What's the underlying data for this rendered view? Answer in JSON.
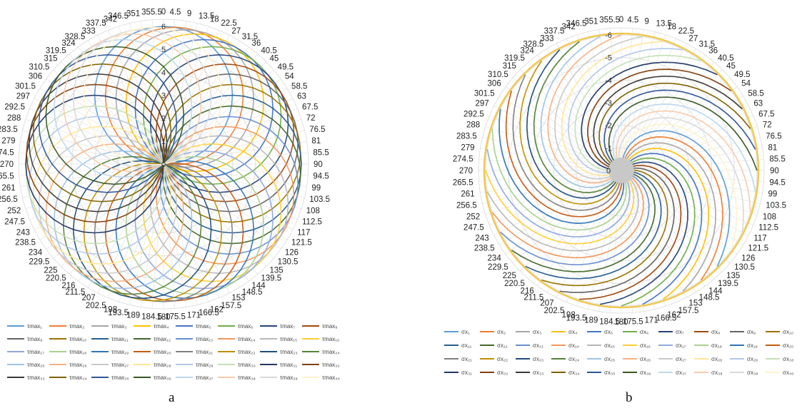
{
  "chart_data": [
    {
      "type": "radar",
      "caption": "a",
      "radial_ticks": [
        "0",
        "1",
        "2",
        "3",
        "4",
        "5",
        "6"
      ],
      "rlim": [
        0,
        6
      ],
      "angle_step_deg": 4.5,
      "angle_label_values": [
        "0",
        "4.5",
        "9",
        "13.5",
        "18",
        "22.5",
        "27",
        "31.5",
        "36",
        "40.5",
        "45",
        "49.5",
        "54",
        "58.5",
        "63",
        "67.5",
        "72",
        "76.5",
        "81",
        "85.5",
        "90",
        "94.5",
        "99",
        "103.5",
        "108",
        "112.5",
        "117",
        "121.5",
        "126",
        "130.5",
        "135",
        "139.5",
        "144",
        "148.5",
        "153",
        "157.5",
        "162",
        "166.5",
        "171",
        "175.5",
        "180",
        "184.5",
        "189",
        "193.5",
        "198",
        "202.5",
        "207",
        "211.5",
        "216",
        "220.5",
        "225",
        "229.5",
        "234",
        "238.5",
        "243",
        "247.5",
        "252",
        "256.5",
        "261",
        "265.5",
        "270",
        "274.5",
        "279",
        "283.5",
        "288",
        "292.5",
        "297",
        "301.5",
        "306",
        "310.5",
        "315",
        "319.5",
        "324",
        "328.5",
        "333",
        "337.5",
        "342",
        "346.5",
        "351",
        "355.5"
      ],
      "series_count": 40,
      "series_prefix": "τmax",
      "legend_columns": 8,
      "legend_position": "bottom",
      "series_shape": "each series is a circle through the origin of diameter 6, rotated 9° per series (r = 6·cos(θ − 9°·(k−1)), zero elsewhere)"
    },
    {
      "type": "radar",
      "caption": "b",
      "radial_ticks": [
        "0",
        "-1",
        "-2",
        "-3",
        "-4",
        "-5",
        "-6"
      ],
      "rlim": [
        -6,
        0
      ],
      "angle_step_deg": 4.5,
      "angle_label_values": [
        "0",
        "4.5",
        "9",
        "13.5",
        "18",
        "22.5",
        "27",
        "31.5",
        "36",
        "40.5",
        "45",
        "49.5",
        "54",
        "58.5",
        "63",
        "67.5",
        "72",
        "76.5",
        "81",
        "85.5",
        "90",
        "94.5",
        "99",
        "103.5",
        "108",
        "112.5",
        "117",
        "121.5",
        "126",
        "130.5",
        "135",
        "139.5",
        "144",
        "148.5",
        "153",
        "157.5",
        "162",
        "166.5",
        "171",
        "175.5",
        "180",
        "184.5",
        "189",
        "193.5",
        "198",
        "202.5",
        "207",
        "211.5",
        "216",
        "220.5",
        "225",
        "229.5",
        "234",
        "238.5",
        "243",
        "247.5",
        "252",
        "256.5",
        "261",
        "265.5",
        "270",
        "274.5",
        "279",
        "283.5",
        "288",
        "292.5",
        "297",
        "301.5",
        "306",
        "310.5",
        "315",
        "319.5",
        "324",
        "328.5",
        "333",
        "337.5",
        "342",
        "346.5",
        "351",
        "355.5"
      ],
      "series_count": 40,
      "series_prefix": "σx",
      "legend_columns": 10,
      "legend_position": "bottom",
      "series_shape": "each series a spiral from value -6 at the centre to 0 on the outer ring, rotated 9° per series"
    }
  ],
  "colors": [
    "#5b9bd5",
    "#ed7d31",
    "#a5a5a5",
    "#ffc000",
    "#4472c4",
    "#70ad47",
    "#264478",
    "#9e480e",
    "#636363",
    "#997300",
    "#255e91",
    "#43682b",
    "#698ed0",
    "#f1975a",
    "#b7b7b7",
    "#ffcd33",
    "#8faadc",
    "#a9d18e",
    "#2e75b6",
    "#c55a11",
    "#7f7f7f",
    "#bf9000",
    "#1f4e79",
    "#548235",
    "#9dc3e6",
    "#f4b183",
    "#c9c9c9",
    "#ffe699",
    "#b4c7e7",
    "#c5e0b4",
    "#203864",
    "#843c0c",
    "#3b3838",
    "#7f6000",
    "#2f5597",
    "#385723",
    "#bdd7ee",
    "#f8cbad",
    "#d9d9d9",
    "#fff2cc"
  ]
}
